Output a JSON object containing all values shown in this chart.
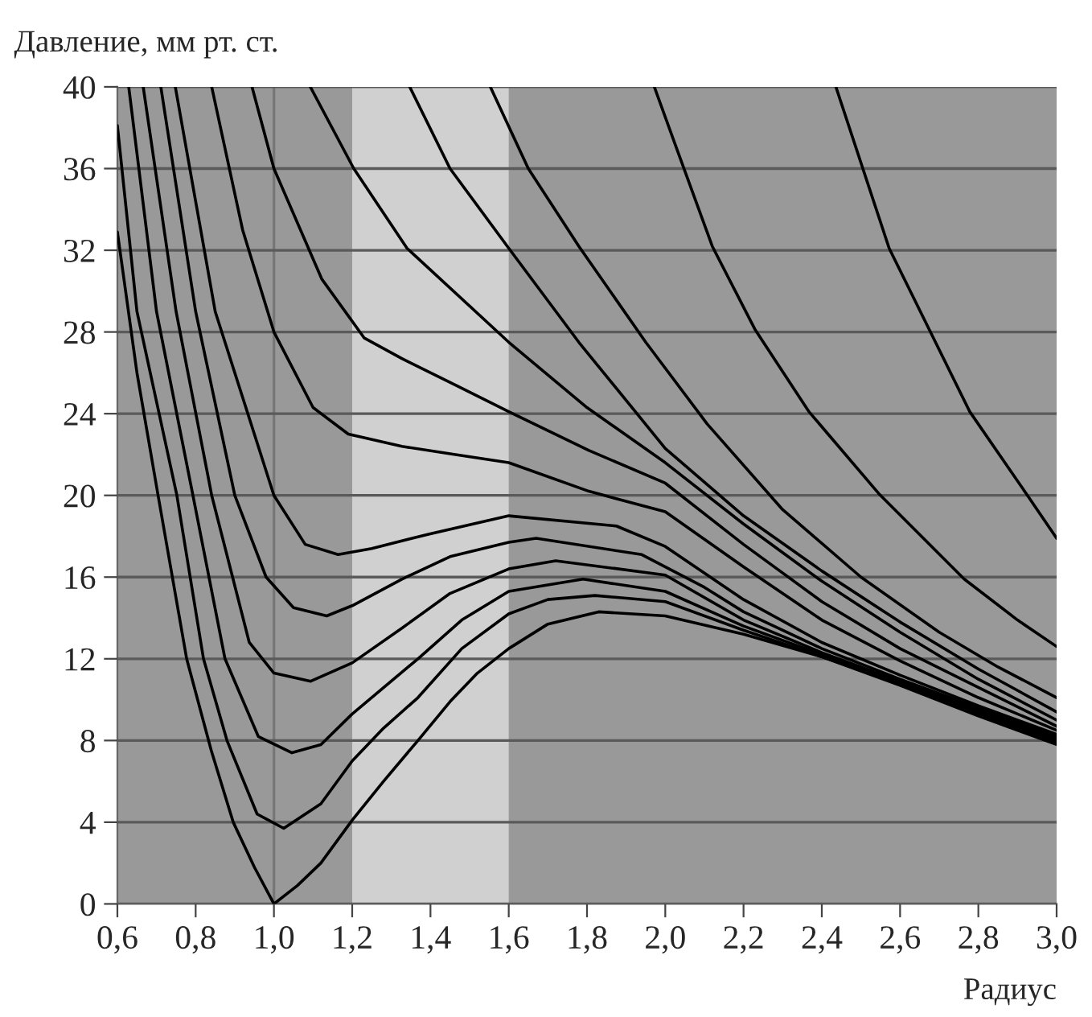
{
  "chart_data": {
    "type": "line",
    "ylabel": "Давление, мм рт. ст.",
    "xlabel": "Радиус",
    "xlim": [
      0.6,
      3.0
    ],
    "ylim": [
      0,
      40
    ],
    "xticks": [
      {
        "value": 0.6,
        "label": "0,6"
      },
      {
        "value": 0.8,
        "label": "0,8"
      },
      {
        "value": 1.0,
        "label": "1,0"
      },
      {
        "value": 1.2,
        "label": "1,2"
      },
      {
        "value": 1.4,
        "label": "1,4"
      },
      {
        "value": 1.6,
        "label": "1,6"
      },
      {
        "value": 1.8,
        "label": "1,8"
      },
      {
        "value": 2.0,
        "label": "2,0"
      },
      {
        "value": 2.2,
        "label": "2,2"
      },
      {
        "value": 2.4,
        "label": "2,4"
      },
      {
        "value": 2.6,
        "label": "2,6"
      },
      {
        "value": 2.8,
        "label": "2,8"
      },
      {
        "value": 3.0,
        "label": "3,0"
      }
    ],
    "yticks": [
      0,
      4,
      8,
      12,
      16,
      20,
      24,
      28,
      32,
      36,
      40
    ],
    "grid": "y",
    "marker": "none",
    "line_style": "solid",
    "bands": [
      {
        "axis": "x",
        "from": 1.2,
        "to": 1.6,
        "color": "#d0d0d0"
      }
    ],
    "ref_lines": [
      {
        "axis": "x",
        "value": 1.0,
        "color": "#777777",
        "line_style": "solid"
      }
    ],
    "series": [
      {
        "color": "#000000",
        "x": [
          0.6,
          0.65,
          0.704,
          0.777,
          0.84,
          0.896,
          0.95,
          1.0,
          1.06,
          1.12,
          1.2,
          1.28,
          1.368,
          1.45,
          1.52,
          1.6,
          1.7,
          1.83,
          2.0,
          2.2,
          2.4,
          2.6,
          2.8,
          3.0
        ],
        "values": [
          32.9,
          26,
          20,
          12,
          7.5,
          4,
          1.8,
          0,
          0.9,
          2.0,
          4.1,
          6.0,
          8.0,
          9.9,
          11.3,
          12.5,
          13.7,
          14.3,
          14.1,
          13.2,
          12.1,
          10.7,
          9.2,
          7.8
        ]
      },
      {
        "color": "#000000",
        "x": [
          0.6,
          0.65,
          0.752,
          0.82,
          0.88,
          0.957,
          1.025,
          1.12,
          1.2,
          1.28,
          1.368,
          1.48,
          1.6,
          1.7,
          1.82,
          2.0,
          2.2,
          2.4,
          2.6,
          2.8,
          3.0
        ],
        "values": [
          38.1,
          29,
          20,
          12,
          8,
          4.4,
          3.7,
          4.9,
          7.0,
          8.6,
          10.1,
          12.5,
          14.2,
          14.9,
          15.1,
          14.8,
          13.4,
          12.1,
          10.8,
          9.3,
          7.9
        ]
      },
      {
        "color": "#000000",
        "x": [
          0.629,
          0.7,
          0.793,
          0.875,
          0.96,
          1.046,
          1.12,
          1.2,
          1.368,
          1.48,
          1.6,
          1.79,
          2.0,
          2.2,
          2.4,
          2.6,
          2.8,
          3.0
        ],
        "values": [
          40,
          29,
          20,
          12,
          8.2,
          7.4,
          7.8,
          9.3,
          12.0,
          13.9,
          15.3,
          15.9,
          15.3,
          13.6,
          12.2,
          10.8,
          9.4,
          8.0
        ]
      },
      {
        "color": "#000000",
        "x": [
          0.666,
          0.75,
          0.841,
          0.937,
          1.0,
          1.094,
          1.2,
          1.327,
          1.45,
          1.6,
          1.72,
          2.0,
          2.2,
          2.4,
          2.6,
          2.8,
          3.0
        ],
        "values": [
          40,
          29,
          20,
          12.8,
          11.3,
          10.9,
          11.8,
          13.5,
          15.2,
          16.4,
          16.8,
          16.1,
          13.9,
          12.3,
          10.9,
          9.5,
          8.1
        ]
      },
      {
        "color": "#000000",
        "x": [
          0.711,
          0.8,
          0.9,
          0.98,
          1.05,
          1.135,
          1.2,
          1.327,
          1.45,
          1.6,
          1.67,
          1.94,
          2.1,
          2.2,
          2.4,
          2.6,
          2.8,
          3.0
        ],
        "values": [
          40,
          29,
          20,
          16,
          14.5,
          14.1,
          14.6,
          15.9,
          17.0,
          17.7,
          17.9,
          17.1,
          15.5,
          14.3,
          12.5,
          11.0,
          9.6,
          8.2
        ]
      },
      {
        "color": "#000000",
        "x": [
          0.748,
          0.85,
          1.0,
          1.08,
          1.164,
          1.25,
          1.395,
          1.6,
          1.875,
          2.0,
          2.2,
          2.4,
          2.6,
          2.8,
          3.0
        ],
        "values": [
          40,
          29,
          20,
          17.6,
          17.1,
          17.4,
          18.1,
          19.0,
          18.5,
          17.5,
          14.9,
          12.8,
          11.2,
          9.7,
          8.3
        ]
      },
      {
        "color": "#000000",
        "x": [
          0.841,
          0.92,
          1.0,
          1.1,
          1.19,
          1.327,
          1.464,
          1.6,
          1.805,
          2.0,
          2.2,
          2.4,
          2.6,
          2.8,
          3.0
        ],
        "values": [
          40,
          33,
          28,
          24.3,
          23.0,
          22.4,
          22.0,
          21.6,
          20.2,
          19.2,
          16.5,
          13.9,
          11.9,
          10.1,
          8.5
        ]
      },
      {
        "color": "#000000",
        "x": [
          0.944,
          1.0,
          1.122,
          1.231,
          1.327,
          1.464,
          1.6,
          1.805,
          2.0,
          2.2,
          2.4,
          2.6,
          2.8,
          3.0
        ],
        "values": [
          40,
          36,
          30.6,
          27.7,
          26.7,
          25.4,
          24.1,
          22.2,
          20.6,
          17.6,
          14.8,
          12.5,
          10.6,
          8.7
        ]
      },
      {
        "color": "#000000",
        "x": [
          1.093,
          1.204,
          1.34,
          1.6,
          1.8,
          2.0,
          2.2,
          2.4,
          2.6,
          2.8,
          3.0
        ],
        "values": [
          40,
          36.0,
          32.1,
          27.5,
          24.3,
          21.6,
          18.6,
          15.8,
          13.3,
          11.0,
          9.0
        ]
      },
      {
        "color": "#000000",
        "x": [
          1.347,
          1.45,
          1.6,
          1.779,
          2.0,
          2.2,
          2.4,
          2.6,
          2.8,
          3.0
        ],
        "values": [
          40,
          36,
          32.1,
          27.5,
          22.3,
          19.0,
          16.3,
          13.8,
          11.5,
          9.4
        ]
      },
      {
        "color": "#000000",
        "x": [
          1.553,
          1.65,
          1.779,
          1.95,
          2.107,
          2.3,
          2.5,
          2.7,
          2.85,
          3.0
        ],
        "values": [
          40,
          36,
          32.2,
          27.5,
          23.5,
          19.3,
          16.0,
          13.3,
          11.6,
          10.1
        ]
      },
      {
        "color": "#000000",
        "x": [
          1.972,
          2.025,
          2.12,
          2.23,
          2.367,
          2.545,
          2.764,
          2.9,
          3.0
        ],
        "values": [
          40,
          37.2,
          32.2,
          28.1,
          24.1,
          20.1,
          15.9,
          13.9,
          12.6
        ]
      },
      {
        "color": "#000000",
        "x": [
          2.436,
          2.572,
          2.778,
          2.929,
          3.0
        ],
        "values": [
          40,
          32.1,
          24.1,
          19.9,
          17.9
        ]
      }
    ]
  }
}
